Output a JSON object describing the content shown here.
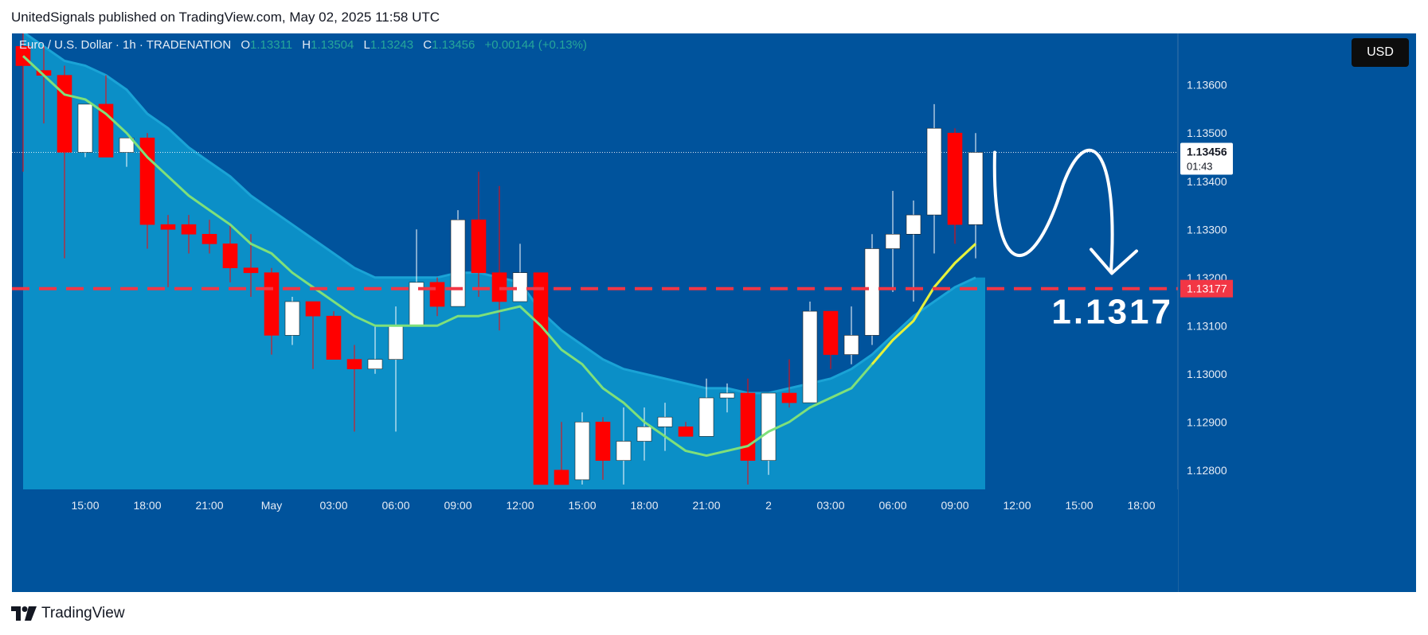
{
  "header": {
    "publisher_line": "UnitedSignals published on TradingView.com, May 02, 2025 11:58 UTC"
  },
  "legend": {
    "symbol": "Euro / U.S. Dollar · 1h · TRADENATION",
    "open_label": "O",
    "open": "1.13311",
    "high_label": "H",
    "high": "1.13504",
    "low_label": "L",
    "low": "1.13243",
    "close_label": "C",
    "close": "1.13456",
    "change": "+0.00144 (+0.13%)"
  },
  "currency_button": "USD",
  "footer": {
    "brand": "TradingView"
  },
  "colors": {
    "background": "#00539c",
    "cloud": "#0b8fc7",
    "up_candle": "#ffffff",
    "down_candle": "#ff0000",
    "ma_line": "#7fe07a",
    "ma_line_recent": "#e6f03a",
    "target_line": "#f23645",
    "target_label_bg": "#f23645"
  },
  "chart_data": {
    "type": "candlestick",
    "ylim": [
      1.1276,
      1.13707
    ],
    "y_ticks": [
      "1.13600",
      "1.13500",
      "1.13400",
      "1.13300",
      "1.13200",
      "1.13100",
      "1.13000",
      "1.12900",
      "1.12800"
    ],
    "x_ticks": [
      "15:00",
      "18:00",
      "21:00",
      "May",
      "03:00",
      "06:00",
      "09:00",
      "12:00",
      "15:00",
      "18:00",
      "21:00",
      "2",
      "03:00",
      "06:00",
      "09:00",
      "12:00",
      "15:00",
      "18:00"
    ],
    "x_tick_index": [
      3,
      6,
      9,
      12,
      15,
      18,
      21,
      24,
      27,
      30,
      33,
      36,
      39,
      42,
      45,
      48,
      51,
      54
    ],
    "candles": [
      {
        "o": 1.1368,
        "h": 1.1372,
        "l": 1.1342,
        "c": 1.1364
      },
      {
        "o": 1.1363,
        "h": 1.1368,
        "l": 1.1352,
        "c": 1.1362
      },
      {
        "o": 1.1362,
        "h": 1.1364,
        "l": 1.1324,
        "c": 1.1346
      },
      {
        "o": 1.1346,
        "h": 1.1356,
        "l": 1.1345,
        "c": 1.1356
      },
      {
        "o": 1.1356,
        "h": 1.1362,
        "l": 1.1345,
        "c": 1.1345
      },
      {
        "o": 1.1346,
        "h": 1.1349,
        "l": 1.1343,
        "c": 1.1349
      },
      {
        "o": 1.1349,
        "h": 1.135,
        "l": 1.1326,
        "c": 1.1331
      },
      {
        "o": 1.1331,
        "h": 1.1333,
        "l": 1.1318,
        "c": 1.133
      },
      {
        "o": 1.1331,
        "h": 1.1333,
        "l": 1.1325,
        "c": 1.1329
      },
      {
        "o": 1.1329,
        "h": 1.1332,
        "l": 1.1325,
        "c": 1.1327
      },
      {
        "o": 1.1327,
        "h": 1.1331,
        "l": 1.1319,
        "c": 1.1322
      },
      {
        "o": 1.1322,
        "h": 1.1329,
        "l": 1.1316,
        "c": 1.1321
      },
      {
        "o": 1.1321,
        "h": 1.1322,
        "l": 1.1304,
        "c": 1.1308
      },
      {
        "o": 1.1308,
        "h": 1.1316,
        "l": 1.1306,
        "c": 1.1315
      },
      {
        "o": 1.1315,
        "h": 1.1315,
        "l": 1.1301,
        "c": 1.1312
      },
      {
        "o": 1.1312,
        "h": 1.1313,
        "l": 1.1303,
        "c": 1.1303
      },
      {
        "o": 1.1303,
        "h": 1.1306,
        "l": 1.1288,
        "c": 1.1301
      },
      {
        "o": 1.1301,
        "h": 1.131,
        "l": 1.13,
        "c": 1.1303
      },
      {
        "o": 1.1303,
        "h": 1.1314,
        "l": 1.1288,
        "c": 1.131
      },
      {
        "o": 1.131,
        "h": 1.133,
        "l": 1.131,
        "c": 1.1319
      },
      {
        "o": 1.1319,
        "h": 1.132,
        "l": 1.1312,
        "c": 1.1314
      },
      {
        "o": 1.1314,
        "h": 1.1334,
        "l": 1.1314,
        "c": 1.1332
      },
      {
        "o": 1.1332,
        "h": 1.1342,
        "l": 1.1316,
        "c": 1.1321
      },
      {
        "o": 1.1321,
        "h": 1.1339,
        "l": 1.1309,
        "c": 1.1315
      },
      {
        "o": 1.1315,
        "h": 1.1327,
        "l": 1.1315,
        "c": 1.1321
      },
      {
        "o": 1.1321,
        "h": 1.1321,
        "l": 1.1277,
        "c": 1.1277
      },
      {
        "o": 1.128,
        "h": 1.129,
        "l": 1.1277,
        "c": 1.1277
      },
      {
        "o": 1.1278,
        "h": 1.1292,
        "l": 1.1277,
        "c": 1.129
      },
      {
        "o": 1.129,
        "h": 1.1291,
        "l": 1.1278,
        "c": 1.1282
      },
      {
        "o": 1.1282,
        "h": 1.1293,
        "l": 1.1277,
        "c": 1.1286
      },
      {
        "o": 1.1286,
        "h": 1.1293,
        "l": 1.1282,
        "c": 1.1289
      },
      {
        "o": 1.1289,
        "h": 1.1294,
        "l": 1.1284,
        "c": 1.1291
      },
      {
        "o": 1.1289,
        "h": 1.129,
        "l": 1.1287,
        "c": 1.1287
      },
      {
        "o": 1.1287,
        "h": 1.1299,
        "l": 1.1287,
        "c": 1.1295
      },
      {
        "o": 1.1295,
        "h": 1.1298,
        "l": 1.1292,
        "c": 1.1296
      },
      {
        "o": 1.1296,
        "h": 1.1299,
        "l": 1.1277,
        "c": 1.1282
      },
      {
        "o": 1.1282,
        "h": 1.1296,
        "l": 1.1279,
        "c": 1.1296
      },
      {
        "o": 1.1296,
        "h": 1.1303,
        "l": 1.1293,
        "c": 1.1294
      },
      {
        "o": 1.1294,
        "h": 1.1315,
        "l": 1.1294,
        "c": 1.1313
      },
      {
        "o": 1.1313,
        "h": 1.1313,
        "l": 1.1301,
        "c": 1.1304
      },
      {
        "o": 1.1304,
        "h": 1.1314,
        "l": 1.1302,
        "c": 1.1308
      },
      {
        "o": 1.1308,
        "h": 1.1329,
        "l": 1.1306,
        "c": 1.1326
      },
      {
        "o": 1.1326,
        "h": 1.1338,
        "l": 1.1317,
        "c": 1.1329
      },
      {
        "o": 1.1329,
        "h": 1.1336,
        "l": 1.1315,
        "c": 1.1333
      },
      {
        "o": 1.1333,
        "h": 1.1356,
        "l": 1.1325,
        "c": 1.1351
      },
      {
        "o": 1.135,
        "h": 1.1351,
        "l": 1.1327,
        "c": 1.1331
      },
      {
        "o": 1.1331,
        "h": 1.135,
        "l": 1.1324,
        "c": 1.1346
      }
    ],
    "ma": [
      1.1366,
      1.1362,
      1.1358,
      1.1357,
      1.1354,
      1.135,
      1.1345,
      1.1341,
      1.1337,
      1.1334,
      1.1331,
      1.1327,
      1.1325,
      1.1321,
      1.1318,
      1.1315,
      1.1312,
      1.131,
      1.131,
      1.131,
      1.131,
      1.1312,
      1.1312,
      1.1313,
      1.1314,
      1.131,
      1.1305,
      1.1302,
      1.1297,
      1.1294,
      1.129,
      1.1287,
      1.1284,
      1.1283,
      1.1284,
      1.1285,
      1.1288,
      1.129,
      1.1293,
      1.1295,
      1.1297,
      1.1302,
      1.1307,
      1.1311,
      1.1318,
      1.1323,
      1.1327
    ],
    "cloud_top": [
      1.1371,
      1.1368,
      1.1365,
      1.1364,
      1.1362,
      1.1359,
      1.1354,
      1.1351,
      1.1347,
      1.1344,
      1.1341,
      1.1337,
      1.1334,
      1.1331,
      1.1328,
      1.1325,
      1.1322,
      1.132,
      1.132,
      1.132,
      1.132,
      1.1321,
      1.1321,
      1.132,
      1.1319,
      1.1313,
      1.1309,
      1.1306,
      1.1303,
      1.1301,
      1.13,
      1.1299,
      1.1298,
      1.1297,
      1.1297,
      1.1296,
      1.1296,
      1.1297,
      1.1298,
      1.1299,
      1.1301,
      1.1304,
      1.1308,
      1.1312,
      1.1315,
      1.1318,
      1.132
    ],
    "target_level": 1.13177,
    "target_label": "1.13177",
    "current_price_label": "1.13456",
    "countdown": "01:43",
    "annotation_text": "1.1317"
  }
}
